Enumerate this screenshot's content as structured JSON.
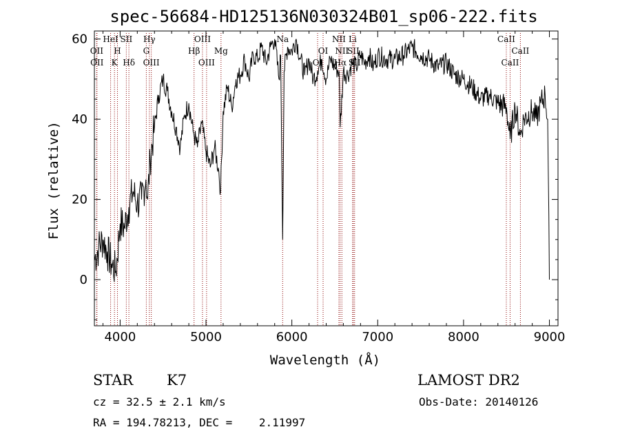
{
  "chart_data": {
    "type": "line",
    "title": "spec-56684-HD125136N030324B01_sp06-222.fits",
    "xlabel": "Wavelength (Å)",
    "ylabel": "Flux (relative)",
    "xlim": [
      3700,
      9100
    ],
    "ylim": [
      -11.5,
      62
    ],
    "xticks": [
      4000,
      5000,
      6000,
      7000,
      8000,
      9000
    ],
    "yticks": [
      0,
      20,
      40,
      60
    ],
    "series": [
      {
        "x": [
          3700,
          3750,
          3800,
          3850,
          3900,
          3950,
          4000,
          4050,
          4100,
          4150,
          4200,
          4250,
          4300,
          4320,
          4350,
          4400,
          4450,
          4500,
          4550,
          4600,
          4650,
          4700,
          4750,
          4800,
          4850,
          4900,
          4950,
          5000,
          5050,
          5100,
          5150,
          5170,
          5200,
          5250,
          5300,
          5350,
          5400,
          5450,
          5500,
          5550,
          5600,
          5650,
          5700,
          5750,
          5800,
          5850,
          5870,
          5893,
          5910,
          5950,
          6000,
          6050,
          6100,
          6150,
          6200,
          6250,
          6300,
          6350,
          6400,
          6450,
          6500,
          6550,
          6563,
          6600,
          6650,
          6700,
          6750,
          6800,
          6850,
          6900,
          6950,
          7000,
          7100,
          7200,
          7300,
          7400,
          7500,
          7600,
          7700,
          7800,
          7900,
          8000,
          8100,
          8200,
          8300,
          8400,
          8500,
          8542,
          8600,
          8662,
          8700,
          8800,
          8850,
          8900,
          8950,
          8980,
          9000
        ],
        "y": [
          5,
          8,
          10,
          7,
          4,
          2,
          14,
          13,
          18,
          22,
          19,
          20,
          25,
          20,
          30,
          38,
          46,
          50,
          47,
          42,
          38,
          33,
          41,
          44,
          37,
          33,
          39,
          32,
          28,
          33,
          27,
          22,
          42,
          48,
          43,
          50,
          51,
          55,
          50,
          56,
          55,
          58,
          54,
          58,
          60,
          50,
          56,
          10,
          52,
          58,
          57,
          60,
          55,
          51,
          55,
          50,
          52,
          55,
          50,
          55,
          53,
          52,
          38,
          52,
          51,
          54,
          53,
          56,
          54,
          56,
          53,
          56,
          55,
          55,
          56,
          58,
          56,
          55,
          53,
          54,
          51,
          50,
          48,
          45,
          46,
          44,
          43,
          35,
          43,
          36,
          40,
          42,
          40,
          44,
          46,
          40,
          0
        ]
      }
    ],
    "lines": [
      {
        "x": 3727,
        "label": "OII",
        "row": 2
      },
      {
        "x": 3730,
        "label": "OII",
        "row": 3
      },
      {
        "x": 3889,
        "label": "HeI",
        "row": 1
      },
      {
        "x": 3934,
        "label": "K",
        "row": 3
      },
      {
        "x": 3969,
        "label": "H",
        "row": 2
      },
      {
        "x": 4072,
        "label": "SII",
        "row": 1
      },
      {
        "x": 4102,
        "label": "Hδ",
        "row": 3
      },
      {
        "x": 4305,
        "label": "G",
        "row": 2
      },
      {
        "x": 4340,
        "label": "Hγ",
        "row": 1
      },
      {
        "x": 4363,
        "label": "OIII",
        "row": 3
      },
      {
        "x": 4861,
        "label": "Hβ",
        "row": 2
      },
      {
        "x": 4959,
        "label": "OIII",
        "row": 1
      },
      {
        "x": 5007,
        "label": "OIII",
        "row": 3
      },
      {
        "x": 5175,
        "label": "Mg",
        "row": 2
      },
      {
        "x": 5893,
        "label": "Na",
        "row": 1
      },
      {
        "x": 6300,
        "label": "OI",
        "row": 3
      },
      {
        "x": 6364,
        "label": "OI",
        "row": 2
      },
      {
        "x": 6548,
        "label": "NII",
        "row": 1
      },
      {
        "x": 6563,
        "label": "Hα",
        "row": 3
      },
      {
        "x": 6583,
        "label": "NII",
        "row": 2
      },
      {
        "x": 6708,
        "label": "Li",
        "row": 1
      },
      {
        "x": 6716,
        "label": "SII",
        "row": 2
      },
      {
        "x": 6731,
        "label": "SII",
        "row": 3
      },
      {
        "x": 8498,
        "label": "CaII",
        "row": 1
      },
      {
        "x": 8542,
        "label": "CaII",
        "row": 3
      },
      {
        "x": 8662,
        "label": "CaII",
        "row": 2
      }
    ],
    "line_color": "#8b0000"
  },
  "info": {
    "class": "STAR",
    "subclass": "K7",
    "survey": "LAMOST DR2",
    "cz": "cz = 32.5 ± 2.1 km/s",
    "obs_date": "Obs-Date: 20140126",
    "coords": "RA = 194.78213, DEC =    2.11997"
  }
}
